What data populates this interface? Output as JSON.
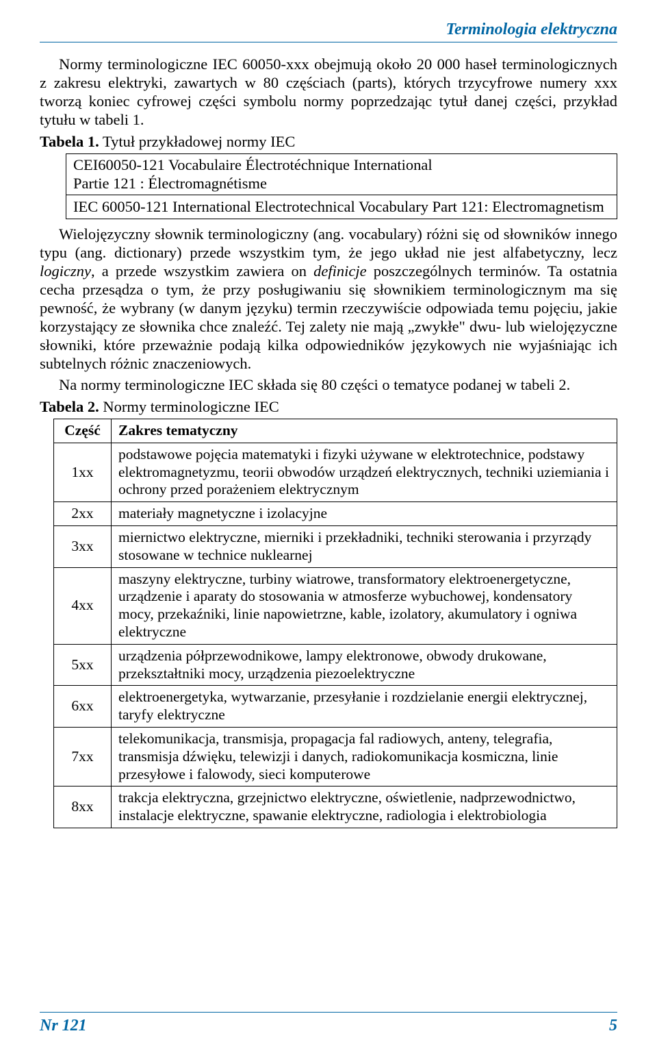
{
  "header": {
    "title": "Terminologia elektryczna"
  },
  "para1": "Normy terminologiczne IEC 60050-xxx obejmują około 20 000 haseł terminologicznych z zakresu elektryki, zawartych w 80 częściach (parts), których trzycyfrowe numery xxx tworzą koniec cyfrowej części symbolu normy poprzedzając tytuł danej części, przykład tytułu w tabeli 1.",
  "table1": {
    "caption_bold": "Tabela 1.",
    "caption_rest": " Tytuł przykładowej normy IEC",
    "line1": "CEI60050-121 Vocabulaire Électrotéchnique International",
    "line2": "Partie 121 : Électromagnétisme",
    "line3": "IEC 60050-121 International Electrotechnical Vocabulary Part 121: Electromagnetism"
  },
  "para2_a": "Wielojęzyczny słownik terminologiczny (ang. vocabulary) różni się od słowników innego typu (ang. dictionary) przede wszystkim tym, że jego układ nie jest alfabetyczny, lecz ",
  "para2_it1": "logiczny",
  "para2_b": ", a przede wszystkim zawiera on ",
  "para2_it2": "definicje",
  "para2_c": " poszczególnych terminów. Ta ostatnia cecha przesądza o tym, że przy posługiwaniu się słownikiem terminologicznym ma się pewność, że wybrany (w danym języku) termin rzeczywiście odpowiada temu pojęciu, jakie korzystający ze słownika chce znaleźć. Tej zalety nie mają „zwykłe\" dwu- lub wielojęzyczne słowniki, które przeważnie podają kilka odpowiedników językowych nie wyjaśniając ich subtelnych różnic znaczeniowych.",
  "para3": "Na normy terminologiczne IEC składa się 80 części o tematyce podanej w tabeli 2.",
  "table2": {
    "caption_bold": "Tabela 2.",
    "caption_rest": " Normy terminologiczne IEC",
    "header_part": "Część",
    "header_scope": "Zakres tematyczny",
    "rows": [
      {
        "part": "1xx",
        "scope": "podstawowe pojęcia matematyki i fizyki używane w elektrotechnice, podstawy elektromagnetyzmu, teorii obwodów urządzeń elektrycznych, techniki uziemiania i ochrony przed porażeniem elektrycznym"
      },
      {
        "part": "2xx",
        "scope": "materiały magnetyczne i izolacyjne"
      },
      {
        "part": "3xx",
        "scope": "miernictwo elektryczne, mierniki i przekładniki, techniki sterowania i przyrządy stosowane w technice nuklearnej"
      },
      {
        "part": "4xx",
        "scope": "maszyny elektryczne, turbiny wiatrowe, transformatory elektroenergetyczne, urządzenie i aparaty do stosowania w atmosferze wybuchowej, kondensatory mocy, przekaźniki, linie napowietrzne, kable, izolatory, akumulatory i ogniwa elektryczne"
      },
      {
        "part": "5xx",
        "scope": "urządzenia półprzewodnikowe, lampy elektronowe, obwody drukowane, przekształtniki mocy, urządzenia piezoelektryczne"
      },
      {
        "part": "6xx",
        "scope": "elektroenergetyka, wytwarzanie, przesyłanie i rozdzielanie energii elektrycznej, taryfy elektryczne"
      },
      {
        "part": "7xx",
        "scope": "telekomunikacja, transmisja, propagacja fal radiowych, anteny, telegrafia, transmisja dźwięku, telewizji i danych, radiokomunikacja kosmiczna, linie przesyłowe i falowody, sieci komputerowe"
      },
      {
        "part": "8xx",
        "scope": "trakcja elektryczna, grzejnictwo elektryczne, oświetlenie, nadprzewodnictwo, instalacje elektryczne, spawanie elektryczne, radiologia i elektrobiologia"
      }
    ]
  },
  "footer": {
    "issue": "Nr 121",
    "page": "5"
  }
}
